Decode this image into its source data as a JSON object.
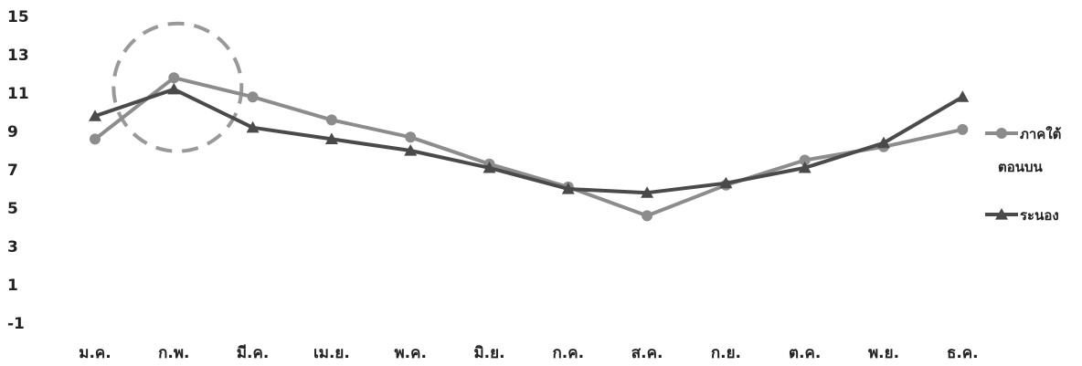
{
  "chart_data": {
    "type": "line",
    "categories": [
      "ม.ค.",
      "ก.พ.",
      "มี.ค.",
      "เม.ย.",
      "พ.ค.",
      "มิ.ย.",
      "ก.ค.",
      "ส.ค.",
      "ก.ย.",
      "ต.ค.",
      "พ.ย.",
      "ธ.ค."
    ],
    "ylim": [
      -1,
      15
    ],
    "yticks": [
      "15",
      "13",
      "11",
      "9",
      "7",
      "5",
      "3",
      "1",
      "-1"
    ],
    "series": [
      {
        "name": "ภาคใต้ตอนบน",
        "legend_lines": [
          "ภาคใต้",
          "ตอนบน"
        ],
        "marker": "circle",
        "color": "#8c8c8c",
        "values": [
          8.6,
          11.8,
          10.8,
          9.6,
          8.7,
          7.3,
          6.1,
          4.6,
          6.2,
          7.5,
          8.2,
          9.1
        ]
      },
      {
        "name": "ระนอง",
        "legend_lines": [
          "ระนอง"
        ],
        "marker": "triangle",
        "color": "#4a4a4a",
        "values": [
          9.8,
          11.2,
          9.2,
          8.6,
          8.0,
          7.1,
          6.0,
          5.8,
          6.3,
          7.1,
          8.4,
          10.8
        ]
      }
    ],
    "annotations": [
      {
        "type": "dashed-circle",
        "category": "ก.พ.",
        "y": 11.3,
        "color": "#999999"
      }
    ],
    "grid": false,
    "legend": "right"
  }
}
